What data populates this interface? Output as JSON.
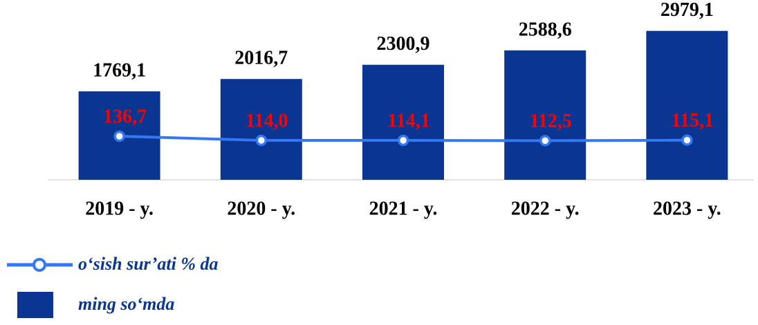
{
  "chart_data": {
    "type": "bar_line",
    "categories": [
      "2019 - y.",
      "2020 - y.",
      "2021 - y.",
      "2022 - y.",
      "2023 - y."
    ],
    "series": [
      {
        "name": "ming so‘mda",
        "type": "bar",
        "color": "#0a3590",
        "values": [
          1769.1,
          2016.7,
          2300.9,
          2588.6,
          2979.1
        ],
        "value_labels": [
          "1769,1",
          "2016,7",
          "2300,9",
          "2588,6",
          "2979,1"
        ]
      },
      {
        "name": "o‘sish sur’ati % da",
        "type": "line",
        "axis": "y2",
        "color": "#3478f6",
        "values": [
          136.7,
          114.0,
          114.1,
          112.5,
          115.1
        ],
        "value_labels": [
          "136,7",
          "114,0",
          "114,1",
          "112,5",
          "115,1"
        ]
      }
    ],
    "ylim": [
      0,
      3500
    ],
    "y2lim": [
      -100,
      850
    ]
  }
}
